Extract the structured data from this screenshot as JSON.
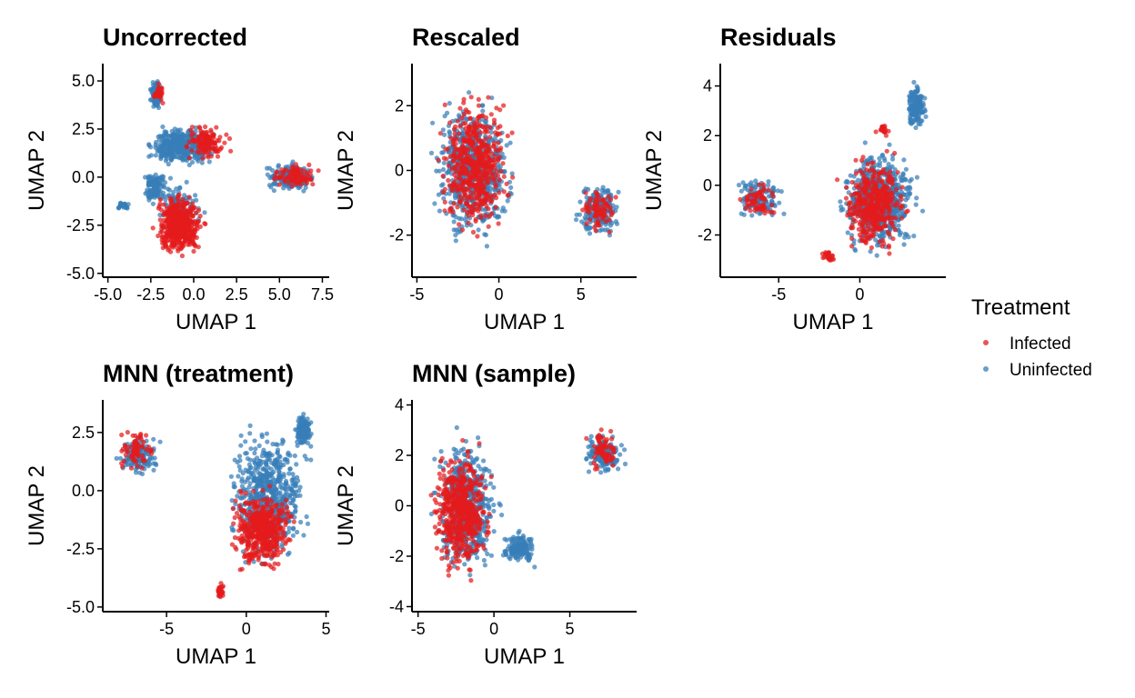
{
  "legend": {
    "title": "Treatment",
    "items": [
      {
        "label": "Infected",
        "color": "#E41A1C"
      },
      {
        "label": "Uninfected",
        "color": "#377EB8"
      }
    ]
  },
  "chart_data": [
    {
      "type": "scatter",
      "title": "Uncorrected",
      "xlabel": "UMAP 1",
      "ylabel": "UMAP 2",
      "xlim": [
        -5.3,
        7.9
      ],
      "ylim": [
        -5.2,
        5.9
      ],
      "xticks": [
        -5,
        -2.5,
        0,
        2.5,
        5,
        7.5
      ],
      "xtick_labels": [
        "-5.0",
        "-2.5",
        "0.0",
        "2.5",
        "5.0",
        "7.5"
      ],
      "yticks": [
        -5,
        -2.5,
        0,
        2.5,
        5
      ],
      "ytick_labels": [
        "-5.0",
        "-2.5",
        "0.0",
        "2.5",
        "5.0"
      ],
      "grid": false,
      "legend": "right",
      "series": [
        {
          "name": "Uninfected",
          "color": "#377EB8",
          "clusters": [
            {
              "x": [
                -2.6,
                -1.8
              ],
              "y": [
                3.4,
                5.2
              ],
              "n": 140
            },
            {
              "x": [
                -3.2,
                1.8
              ],
              "y": [
                0.3,
                2.9
              ],
              "n": 420
            },
            {
              "x": [
                -3.2,
                -1.3
              ],
              "y": [
                -1.7,
                0.6
              ],
              "n": 120
            },
            {
              "x": [
                -4.6,
                -3.6
              ],
              "y": [
                -1.7,
                -1.2
              ],
              "n": 30
            },
            {
              "x": [
                3.8,
                7.6
              ],
              "y": [
                -0.9,
                0.9
              ],
              "n": 200
            },
            {
              "x": [
                -2.8,
                0.9
              ],
              "y": [
                -3.5,
                0.2
              ],
              "n": 120
            }
          ]
        },
        {
          "name": "Infected",
          "color": "#E41A1C",
          "clusters": [
            {
              "x": [
                -2.7,
                1.0
              ],
              "y": [
                -4.6,
                -0.3
              ],
              "n": 480
            },
            {
              "x": [
                -2.4,
                -1.7
              ],
              "y": [
                3.8,
                5.0
              ],
              "n": 30
            },
            {
              "x": [
                -0.9,
                2.3
              ],
              "y": [
                0.6,
                3.0
              ],
              "n": 120
            },
            {
              "x": [
                4.2,
                7.6
              ],
              "y": [
                -0.7,
                0.8
              ],
              "n": 90
            }
          ]
        }
      ]
    },
    {
      "type": "scatter",
      "title": "Rescaled",
      "xlabel": "UMAP 1",
      "ylabel": "UMAP 2",
      "xlim": [
        -5.3,
        8.4
      ],
      "ylim": [
        -3.3,
        3.3
      ],
      "xticks": [
        -5,
        0,
        5
      ],
      "xtick_labels": [
        "-5",
        "0",
        "5"
      ],
      "yticks": [
        -2,
        0,
        2
      ],
      "ytick_labels": [
        "-2",
        "0",
        "2"
      ],
      "grid": false,
      "legend": "right",
      "series": [
        {
          "name": "Uninfected",
          "color": "#377EB8",
          "clusters": [
            {
              "x": [
                -4.7,
                1.6
              ],
              "y": [
                -2.8,
                2.9
              ],
              "n": 650
            },
            {
              "x": [
                4.4,
                7.8
              ],
              "y": [
                -2.3,
                -0.1
              ],
              "n": 190
            }
          ]
        },
        {
          "name": "Infected",
          "color": "#E41A1C",
          "clusters": [
            {
              "x": [
                -4.2,
                1.3
              ],
              "y": [
                -2.6,
                2.9
              ],
              "n": 520
            },
            {
              "x": [
                4.6,
                7.6
              ],
              "y": [
                -2.2,
                -0.2
              ],
              "n": 80
            }
          ]
        }
      ]
    },
    {
      "type": "scatter",
      "title": "Residuals",
      "xlabel": "UMAP 1",
      "ylabel": "UMAP 2",
      "xlim": [
        -8.6,
        5.3
      ],
      "ylim": [
        -3.7,
        4.9
      ],
      "xticks": [
        -5,
        0
      ],
      "xtick_labels": [
        "-5",
        "0"
      ],
      "yticks": [
        -2,
        0,
        2,
        4
      ],
      "ytick_labels": [
        "-2",
        "0",
        "2",
        "4"
      ],
      "grid": false,
      "legend": "right",
      "series": [
        {
          "name": "Uninfected",
          "color": "#377EB8",
          "clusters": [
            {
              "x": [
                -1.9,
                4.3
              ],
              "y": [
                -3.3,
                2.1
              ],
              "n": 650
            },
            {
              "x": [
                2.7,
                4.3
              ],
              "y": [
                1.9,
                4.4
              ],
              "n": 160
            },
            {
              "x": [
                -8.1,
                -4.2
              ],
              "y": [
                -1.6,
                0.6
              ],
              "n": 140
            }
          ]
        },
        {
          "name": "Infected",
          "color": "#E41A1C",
          "clusters": [
            {
              "x": [
                -1.6,
                3.4
              ],
              "y": [
                -3.2,
                1.6
              ],
              "n": 420
            },
            {
              "x": [
                -7.7,
                -4.7
              ],
              "y": [
                -1.5,
                0.3
              ],
              "n": 70
            },
            {
              "x": [
                -2.5,
                -1.3
              ],
              "y": [
                -3.2,
                -2.5
              ],
              "n": 25
            },
            {
              "x": [
                0.9,
                2.0
              ],
              "y": [
                1.9,
                2.6
              ],
              "n": 20
            }
          ]
        }
      ]
    },
    {
      "type": "scatter",
      "title": "MNN (treatment)",
      "xlabel": "UMAP 1",
      "ylabel": "UMAP 2",
      "xlim": [
        -9.0,
        5.2
      ],
      "ylim": [
        -5.2,
        3.9
      ],
      "xticks": [
        -5,
        0,
        5
      ],
      "xtick_labels": [
        "-5",
        "0",
        "5"
      ],
      "yticks": [
        -5,
        -2.5,
        0,
        2.5
      ],
      "ytick_labels": [
        "-5.0",
        "-2.5",
        "0.0",
        "2.5"
      ],
      "grid": false,
      "legend": "right",
      "series": [
        {
          "name": "Uninfected",
          "color": "#377EB8",
          "clusters": [
            {
              "x": [
                -1.8,
                4.6
              ],
              "y": [
                -3.8,
                3.4
              ],
              "n": 600
            },
            {
              "x": [
                2.9,
                4.3
              ],
              "y": [
                1.5,
                3.7
              ],
              "n": 120
            },
            {
              "x": [
                -8.5,
                -5.0
              ],
              "y": [
                0.4,
                2.6
              ],
              "n": 140
            }
          ]
        },
        {
          "name": "Infected",
          "color": "#E41A1C",
          "clusters": [
            {
              "x": [
                -1.6,
                3.6
              ],
              "y": [
                -3.9,
                0.6
              ],
              "n": 460
            },
            {
              "x": [
                -8.3,
                -5.4
              ],
              "y": [
                0.5,
                3.0
              ],
              "n": 70
            },
            {
              "x": [
                -1.9,
                -1.3
              ],
              "y": [
                -4.8,
                -3.8
              ],
              "n": 25
            }
          ]
        }
      ]
    },
    {
      "type": "scatter",
      "title": "MNN (sample)",
      "xlabel": "UMAP 1",
      "ylabel": "UMAP 2",
      "xlim": [
        -5.4,
        9.4
      ],
      "ylim": [
        -4.2,
        4.2
      ],
      "xticks": [
        -5,
        0,
        5
      ],
      "xtick_labels": [
        "-5",
        "0",
        "5"
      ],
      "yticks": [
        -4,
        -2,
        0,
        2,
        4
      ],
      "ytick_labels": [
        "-4",
        "-2",
        "0",
        "2",
        "4"
      ],
      "grid": false,
      "legend": "right",
      "series": [
        {
          "name": "Uninfected",
          "color": "#377EB8",
          "clusters": [
            {
              "x": [
                -4.6,
                0.9
              ],
              "y": [
                -3.6,
                3.6
              ],
              "n": 560
            },
            {
              "x": [
                0.2,
                3.1
              ],
              "y": [
                -2.5,
                -0.8
              ],
              "n": 140
            },
            {
              "x": [
                5.6,
                8.8
              ],
              "y": [
                1.0,
                3.1
              ],
              "n": 150
            }
          ]
        },
        {
          "name": "Infected",
          "color": "#E41A1C",
          "clusters": [
            {
              "x": [
                -4.6,
                0.3
              ],
              "y": [
                -3.5,
                3.2
              ],
              "n": 520
            },
            {
              "x": [
                5.8,
                8.6
              ],
              "y": [
                1.1,
                3.2
              ],
              "n": 70
            }
          ]
        }
      ]
    }
  ]
}
